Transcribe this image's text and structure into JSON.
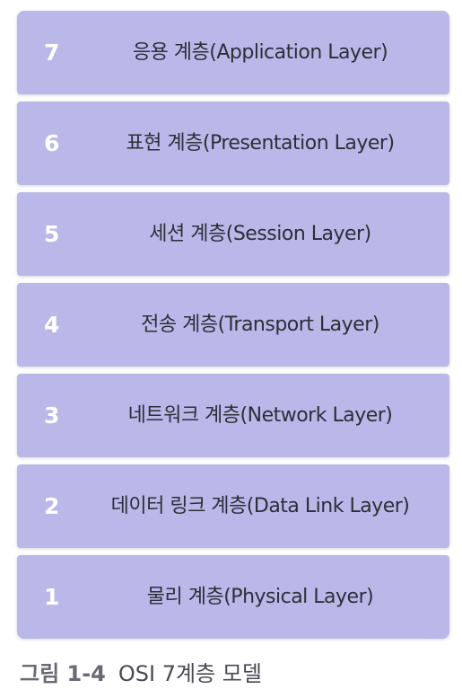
{
  "layers": [
    {
      "number": "7",
      "label": "응용 계층(Application Layer)"
    },
    {
      "number": "6",
      "label": "표현 계층(Presentation Layer)"
    },
    {
      "number": "5",
      "label": "세션 계층(Session Layer)"
    },
    {
      "number": "4",
      "label": "전송 계층(Transport Layer)"
    },
    {
      "number": "3",
      "label": "네트워크 계층(Network Layer)"
    },
    {
      "number": "2",
      "label": "데이터 링크 계층(Data Link Layer)"
    },
    {
      "number": "1",
      "label": "물리 계층(Physical Layer)"
    }
  ],
  "caption": {
    "figure_label": "그림 1-4",
    "title": "OSI 7계층 모델"
  },
  "colors": {
    "layer_fill": "#b9b8e8",
    "layer_number": "#ffffff",
    "layer_text": "#2e2e3a",
    "caption_text": "#4a4a55"
  }
}
